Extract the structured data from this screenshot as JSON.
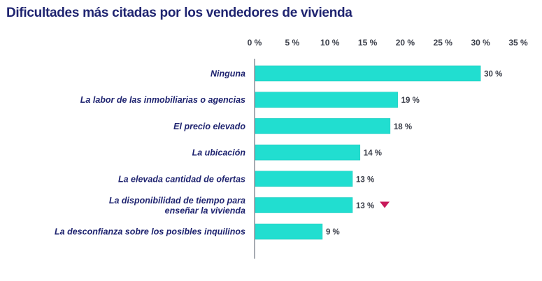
{
  "chart_data": {
    "type": "bar",
    "orientation": "horizontal",
    "title": "Dificultades más citadas por los vendedores de vivienda",
    "xlabel": "",
    "ylabel": "",
    "xlim": [
      0,
      35
    ],
    "ticks": [
      0,
      5,
      10,
      15,
      20,
      25,
      30,
      35
    ],
    "tick_labels": [
      "0 %",
      "5 %",
      "10 %",
      "15 %",
      "20 %",
      "25 %",
      "30 %",
      "35 %"
    ],
    "ticks_position": "top",
    "grid": false,
    "legend": "none",
    "categories": [
      [
        "Ninguna"
      ],
      [
        "La labor de las inmobiliarias o agencias"
      ],
      [
        "El precio elevado"
      ],
      [
        "La ubicación"
      ],
      [
        "La elevada cantidad de ofertas"
      ],
      [
        "La disponibilidad de tiempo para",
        "enseñar la vivienda"
      ],
      [
        "La desconfianza sobre los posibles inquilinos"
      ]
    ],
    "values": [
      30,
      19,
      18,
      14,
      13,
      13,
      9
    ],
    "value_labels": [
      "30 %",
      "19 %",
      "18 %",
      "14 %",
      "13 %",
      "13 %",
      "9 %"
    ],
    "annotations": [
      {
        "category_index": 5,
        "marker": "down-triangle",
        "meaning": "decrease"
      }
    ],
    "colors": {
      "bar": "#21ded0",
      "bar_edge": "#1cc7bb",
      "axis": "#8a8f99",
      "marker": "#c8195a"
    }
  }
}
